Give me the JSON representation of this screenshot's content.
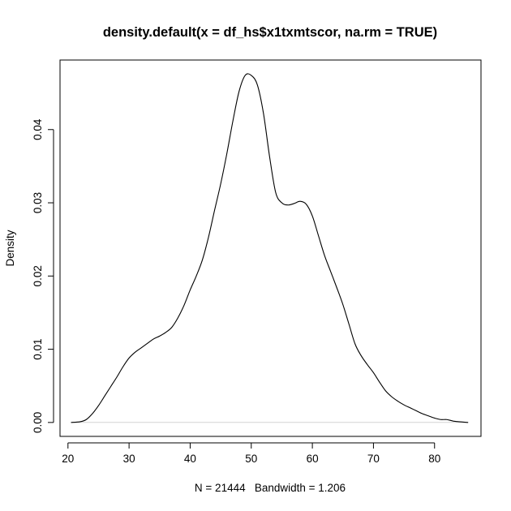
{
  "chart_data": {
    "type": "line",
    "title": "density.default(x = df_hs$x1txmtscor, na.rm = TRUE)",
    "xlabel": "N = 21444   Bandwidth = 1.206",
    "ylabel": "Density",
    "xlim": [
      18.7,
      87.6
    ],
    "ylim": [
      -0.0019,
      0.0495
    ],
    "x_ticks": [
      20,
      30,
      40,
      50,
      60,
      70,
      80
    ],
    "x_tick_labels": [
      "20",
      "30",
      "40",
      "50",
      "60",
      "70",
      "80"
    ],
    "y_ticks": [
      0.0,
      0.01,
      0.02,
      0.03,
      0.04
    ],
    "y_tick_labels": [
      "0.00",
      "0.01",
      "0.02",
      "0.03",
      "0.04"
    ],
    "zero_line": true,
    "grid": false,
    "series": [
      {
        "x": [
          20.5,
          22.0,
          23.0,
          24.0,
          25.0,
          26.0,
          27.0,
          28.0,
          29.0,
          30.0,
          31.0,
          32.0,
          33.0,
          34.0,
          35.0,
          36.0,
          37.0,
          38.0,
          39.0,
          40.0,
          41.0,
          42.0,
          43.0,
          44.0,
          45.0,
          46.0,
          47.0,
          48.0,
          49.0,
          50.0,
          51.0,
          52.0,
          53.0,
          54.0,
          55.0,
          56.0,
          57.0,
          58.0,
          59.0,
          60.0,
          61.0,
          62.0,
          63.0,
          64.0,
          65.0,
          66.0,
          67.0,
          68.0,
          69.0,
          70.0,
          71.0,
          72.0,
          73.0,
          74.0,
          75.0,
          76.0,
          77.0,
          78.0,
          79.0,
          80.0,
          81.0,
          82.0,
          83.0,
          84.0,
          85.5
        ],
        "y": [
          0.0,
          0.0001,
          0.0004,
          0.0012,
          0.0023,
          0.0036,
          0.0049,
          0.0062,
          0.0076,
          0.0088,
          0.0096,
          0.0102,
          0.0108,
          0.0114,
          0.0118,
          0.0123,
          0.013,
          0.0143,
          0.016,
          0.0181,
          0.02,
          0.0222,
          0.0253,
          0.029,
          0.0326,
          0.0367,
          0.0412,
          0.0452,
          0.0474,
          0.0474,
          0.0461,
          0.0422,
          0.0363,
          0.0314,
          0.03,
          0.0297,
          0.0299,
          0.0302,
          0.0298,
          0.0282,
          0.0255,
          0.0228,
          0.0206,
          0.0184,
          0.0161,
          0.0134,
          0.0107,
          0.0091,
          0.0079,
          0.0068,
          0.0055,
          0.0043,
          0.0035,
          0.0029,
          0.0024,
          0.002,
          0.0016,
          0.0012,
          0.0009,
          0.0006,
          0.0004,
          0.0004,
          0.0002,
          0.0001,
          0.0
        ]
      }
    ]
  }
}
